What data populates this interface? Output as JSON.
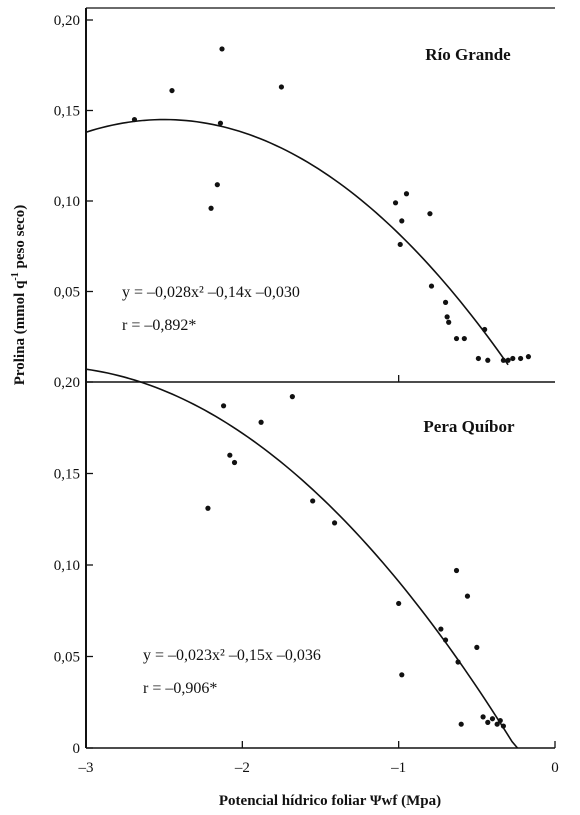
{
  "chart_data": [
    {
      "type": "scatter",
      "title": "Río Grande",
      "xlim": [
        -3,
        0
      ],
      "ylim": [
        0,
        0.2
      ],
      "y_ticks": [
        "0,05",
        "0,10",
        "0,15",
        "0,20"
      ],
      "y_tick_values": [
        0.05,
        0.1,
        0.15,
        0.2
      ],
      "x_tick_values": [
        -1
      ],
      "equation": "y = –0,028x² –0,14x –0,030",
      "r": "r = –0,892*",
      "fit": {
        "a": -0.028,
        "b": -0.14,
        "c": -0.03,
        "x_range": [
          -3,
          -0.3
        ]
      },
      "points": [
        {
          "x": -2.69,
          "y": 0.145
        },
        {
          "x": -2.45,
          "y": 0.161
        },
        {
          "x": -2.13,
          "y": 0.184
        },
        {
          "x": -2.14,
          "y": 0.143
        },
        {
          "x": -1.75,
          "y": 0.163
        },
        {
          "x": -2.16,
          "y": 0.109
        },
        {
          "x": -2.2,
          "y": 0.096
        },
        {
          "x": -1.02,
          "y": 0.099
        },
        {
          "x": -0.95,
          "y": 0.104
        },
        {
          "x": -0.98,
          "y": 0.089
        },
        {
          "x": -0.99,
          "y": 0.076
        },
        {
          "x": -0.8,
          "y": 0.093
        },
        {
          "x": -0.79,
          "y": 0.053
        },
        {
          "x": -0.7,
          "y": 0.044
        },
        {
          "x": -0.69,
          "y": 0.036
        },
        {
          "x": -0.68,
          "y": 0.033
        },
        {
          "x": -0.63,
          "y": 0.024
        },
        {
          "x": -0.58,
          "y": 0.024
        },
        {
          "x": -0.49,
          "y": 0.013
        },
        {
          "x": -0.45,
          "y": 0.029
        },
        {
          "x": -0.43,
          "y": 0.012
        },
        {
          "x": -0.33,
          "y": 0.012
        },
        {
          "x": -0.3,
          "y": 0.012
        },
        {
          "x": -0.27,
          "y": 0.013
        },
        {
          "x": -0.22,
          "y": 0.013
        },
        {
          "x": -0.17,
          "y": 0.014
        }
      ]
    },
    {
      "type": "scatter",
      "title": "Pera Quíbor",
      "xlim": [
        -3,
        0
      ],
      "ylim": [
        0,
        0.2
      ],
      "y_ticks": [
        "0",
        "0,05",
        "0,10",
        "0,15",
        "0,20"
      ],
      "y_tick_values": [
        0,
        0.05,
        0.1,
        0.15,
        0.2
      ],
      "x_ticks": [
        "–3",
        "–2",
        "–1",
        "0"
      ],
      "x_tick_values": [
        -3,
        -2,
        -1,
        0
      ],
      "equation": "y = –0,023x² –0,15x –0,036",
      "r": "r = –0,906*",
      "fit": {
        "a": -0.023,
        "b": -0.15,
        "c": -0.036,
        "x_range": [
          -3,
          -0.24
        ]
      },
      "points": [
        {
          "x": -2.12,
          "y": 0.187
        },
        {
          "x": -1.68,
          "y": 0.192
        },
        {
          "x": -1.88,
          "y": 0.178
        },
        {
          "x": -2.08,
          "y": 0.16
        },
        {
          "x": -2.05,
          "y": 0.156
        },
        {
          "x": -2.22,
          "y": 0.131
        },
        {
          "x": -1.55,
          "y": 0.135
        },
        {
          "x": -1.41,
          "y": 0.123
        },
        {
          "x": -1.0,
          "y": 0.079
        },
        {
          "x": -0.98,
          "y": 0.04
        },
        {
          "x": -0.73,
          "y": 0.065
        },
        {
          "x": -0.7,
          "y": 0.059
        },
        {
          "x": -0.63,
          "y": 0.097
        },
        {
          "x": -0.56,
          "y": 0.083
        },
        {
          "x": -0.5,
          "y": 0.055
        },
        {
          "x": -0.62,
          "y": 0.047
        },
        {
          "x": -0.6,
          "y": 0.013
        },
        {
          "x": -0.46,
          "y": 0.017
        },
        {
          "x": -0.43,
          "y": 0.014
        },
        {
          "x": -0.4,
          "y": 0.016
        },
        {
          "x": -0.37,
          "y": 0.013
        },
        {
          "x": -0.35,
          "y": 0.015
        },
        {
          "x": -0.33,
          "y": 0.012
        }
      ]
    }
  ],
  "ylabel_main": "Prolina (mmol q",
  "ylabel_sup": "-1",
  "ylabel_rest": " peso seco)",
  "xlabel": "Potencial hídrico foliar Ψwf (Mpa)"
}
